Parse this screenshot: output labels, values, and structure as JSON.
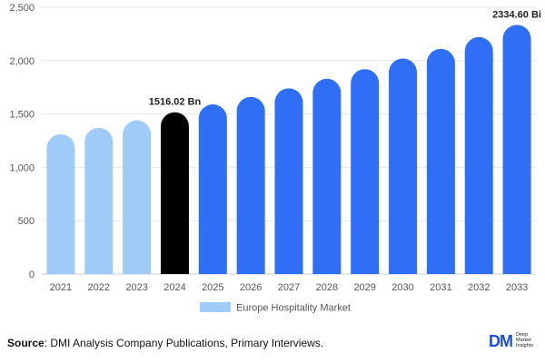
{
  "chart_data": {
    "type": "bar",
    "categories": [
      "2021",
      "2022",
      "2023",
      "2024",
      "2025",
      "2026",
      "2027",
      "2028",
      "2029",
      "2030",
      "2031",
      "2032",
      "2033"
    ],
    "series": [
      {
        "name": "Europe Hospitality Market",
        "values": [
          1310,
          1370,
          1440,
          1516.02,
          1590,
          1660,
          1740,
          1830,
          1920,
          2020,
          2110,
          2220,
          2334.6
        ]
      }
    ],
    "bar_colors": [
      "#9ecbf7",
      "#9ecbf7",
      "#9ecbf7",
      "#000000",
      "#2f6ff5",
      "#2f6ff5",
      "#2f6ff5",
      "#2f6ff5",
      "#2f6ff5",
      "#2f6ff5",
      "#2f6ff5",
      "#2f6ff5",
      "#2f6ff5"
    ],
    "data_labels": [
      {
        "index": 3,
        "text": "1516.02 Bn"
      },
      {
        "index": 12,
        "text": "2334.60 Bi"
      }
    ],
    "ylim": [
      0,
      2500
    ],
    "yticks": [
      "0",
      "500",
      "1,000",
      "1,500",
      "2,000",
      "2,500"
    ],
    "ytick_values": [
      0,
      500,
      1000,
      1500,
      2000,
      2500
    ],
    "grid": true,
    "legend_position": "bottom",
    "legend_color": "#9ecbf7",
    "title": "",
    "xlabel": "",
    "ylabel": ""
  },
  "footer": {
    "source_label": "Source",
    "source_text": ": DMI Analysis Company Publications, Primary Interviews."
  },
  "logo": {
    "mark": "DM",
    "line1": "Deep",
    "line2": "Market",
    "line3": "Insights"
  }
}
